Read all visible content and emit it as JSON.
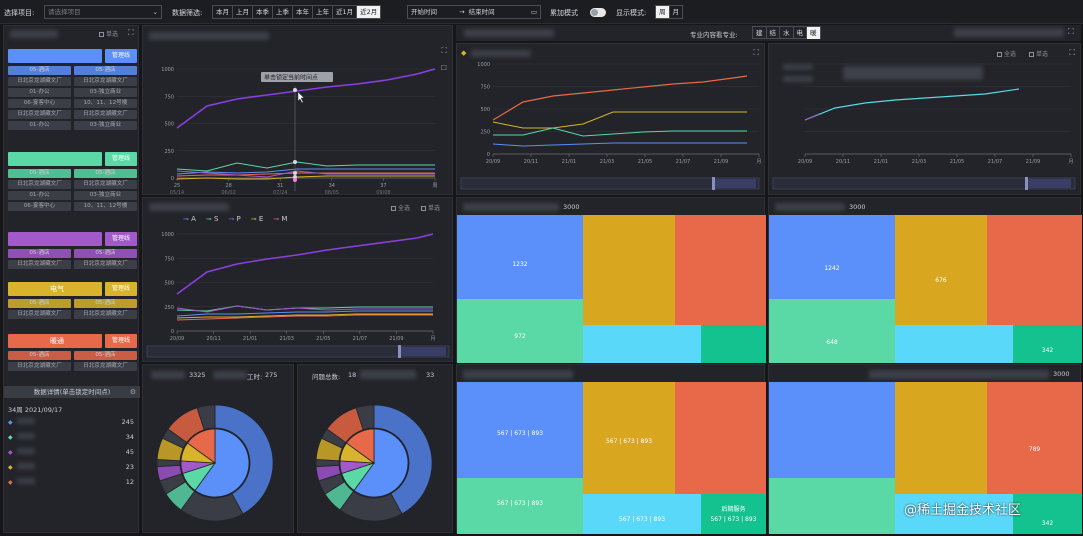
{
  "topbar": {
    "project_label": "选择项目:",
    "project_placeholder": "请选择项目",
    "filter_label": "数据筛选:",
    "filters": [
      "本月",
      "上月",
      "本季",
      "上季",
      "本年",
      "上年",
      "近1月",
      "近2月"
    ],
    "start": "开始时间",
    "arrow": "→",
    "end": "结束时间",
    "accum_label": "累加模式",
    "display_label": "显示模式:",
    "display_opts": [
      "周",
      "月"
    ]
  },
  "sidebar": {
    "single": "单选",
    "cards": [
      {
        "title": "",
        "color": "#5b8ff9",
        "manage": "管理线",
        "tags": [
          "05-酒店",
          "05-酒店",
          "日北京龙湖藏文厂",
          "日北京龙湖藏文厂",
          "01-办公",
          "03-独立商业",
          "06-宴客中心",
          "10、11、12号楼",
          "日北京龙湖藏文厂",
          "日北京龙湖藏文厂",
          "01-办公",
          "03-独立商业"
        ]
      },
      {
        "title": "",
        "color": "#5ad8a6",
        "manage": "管理线",
        "tags": [
          "05-酒店",
          "05-酒店",
          "日北京龙湖藏文厂",
          "日北京龙湖藏文厂",
          "01-办公",
          "03-独立商业",
          "06-宴客中心",
          "10、11、12号楼"
        ]
      },
      {
        "title": "",
        "color": "#a259c9",
        "manage": "管理线",
        "tags": [
          "05-酒店",
          "05-酒店",
          "日北京龙湖藏文厂",
          "日北京龙湖藏文厂"
        ]
      },
      {
        "title": "电气",
        "color": "#d8b32b",
        "manage": "管理线",
        "tags": [
          "05-酒店",
          "05-酒店",
          "日北京龙湖藏文厂",
          "日北京龙湖藏文厂"
        ]
      },
      {
        "title": "暖通",
        "color": "#e8684a",
        "manage": "管理线",
        "tags": [
          "05-酒店",
          "05-酒店",
          "日北京龙湖藏文厂",
          "日北京龙湖藏文厂"
        ]
      }
    ],
    "detail_title": "数据详情(单击锁定时间点)",
    "detail_date": "34周 2021/09/17",
    "detail_rows": [
      {
        "v": "245",
        "c": "#5b8ff9"
      },
      {
        "v": "34",
        "c": "#5ad8a6"
      },
      {
        "v": "45",
        "c": "#a259c9"
      },
      {
        "v": "23",
        "c": "#d8b32b"
      },
      {
        "v": "12",
        "c": "#e8684a"
      }
    ]
  },
  "mid": {
    "chart1": {
      "tooltip": "单击锁定当前时间点",
      "yticks": [
        "1000",
        "750",
        "500",
        "250",
        "0"
      ],
      "xticks": [
        "25",
        "28",
        "31",
        "34",
        "37",
        "周"
      ],
      "xsub": [
        "05/14",
        "06/02",
        "07/24",
        "08/05",
        "09/08"
      ]
    },
    "chart2": {
      "legend": [
        "A",
        "S",
        "P",
        "E",
        "M"
      ],
      "legend_colors": [
        "#5b8ff9",
        "#5ad8a6",
        "#a259c9",
        "#d8b32b",
        "#e8684a"
      ],
      "all": "全选",
      "single": "单选",
      "yticks": [
        "1000",
        "750",
        "500",
        "250",
        "0"
      ],
      "xticks": [
        "20/09",
        "20/11",
        "21/01",
        "21/03",
        "21/05",
        "21/07",
        "21/09",
        "月"
      ]
    },
    "donut1": {
      "count": "3325",
      "hours_label": "工时:",
      "hours": "275"
    },
    "donut2": {
      "label": "问题总数:",
      "count_prefix": "18",
      "suffix": "33"
    }
  },
  "right": {
    "major_label": "专业内容看专业:",
    "majors": [
      "建",
      "结",
      "水",
      "电",
      "暖"
    ],
    "all": "全选",
    "single": "单选",
    "chartA": {
      "yticks": [
        "1000",
        "750",
        "500",
        "250",
        "0"
      ],
      "xticks": [
        "20/09",
        "20/11",
        "21/01",
        "21/03",
        "21/05",
        "21/07",
        "21/09",
        "月"
      ]
    },
    "chartB": {
      "xticks": [
        "20/09",
        "20/11",
        "21/01",
        "21/03",
        "21/05",
        "21/07",
        "21/09",
        "月"
      ]
    },
    "tm1": {
      "total": "3000",
      "vals": [
        "1232",
        "",
        "",
        "972",
        "",
        "",
        "342"
      ]
    },
    "tm2": {
      "total": "3000",
      "vals": [
        "1242",
        "676",
        "",
        "648",
        "",
        "342"
      ]
    },
    "tm3": {
      "vals": [
        "567 | 673 | 893",
        "567 | 673 | 893",
        "",
        "567 | 673 | 893",
        "567 | 673 | 893",
        "567 | 673 | 893"
      ],
      "svc": "后期服务"
    },
    "tm4": {
      "total": "3000",
      "vals": [
        "",
        "",
        "789",
        "",
        "",
        "342"
      ]
    }
  },
  "watermark": "@稀土掘金技术社区"
}
